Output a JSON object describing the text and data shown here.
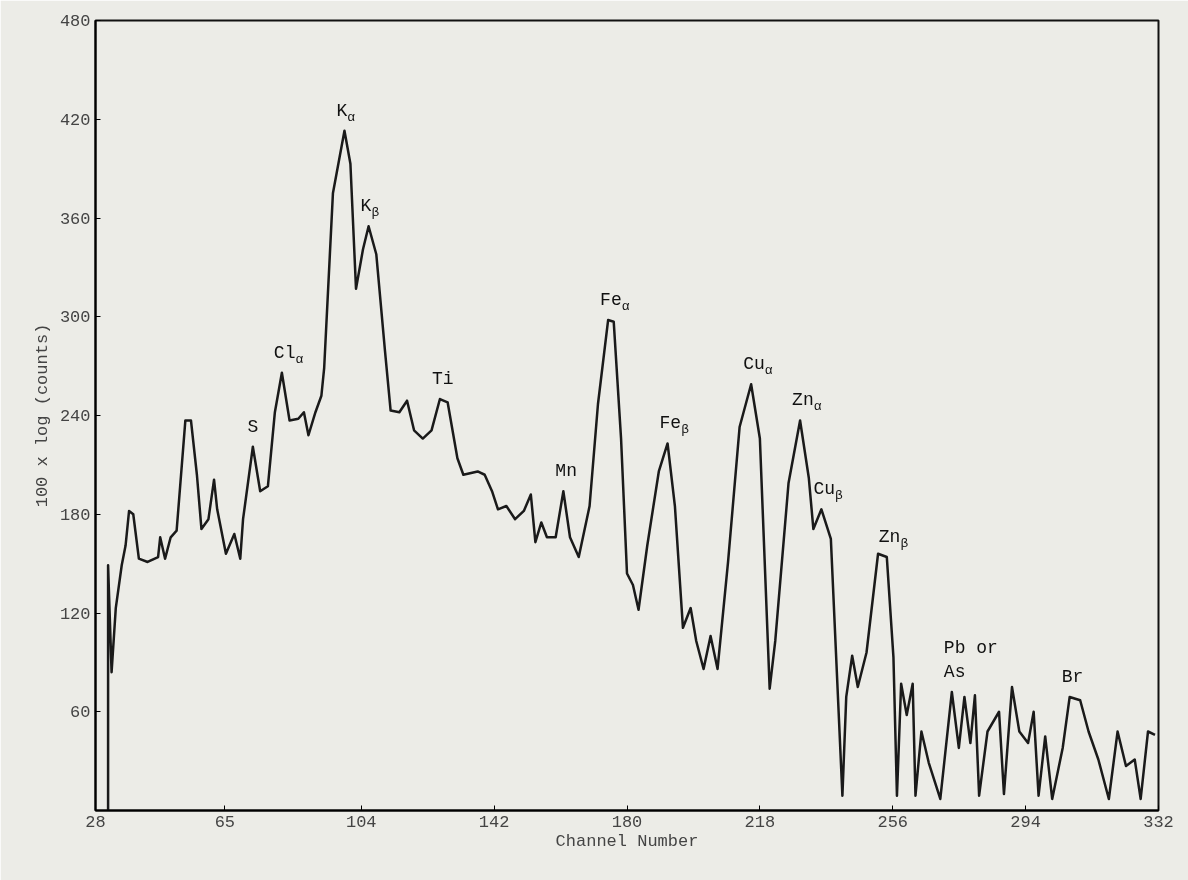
{
  "chart_data": {
    "type": "line",
    "xlabel": "Channel Number",
    "ylabel": "100 x log (counts)",
    "x": [
      31.6,
      31.6,
      32.6,
      33.8,
      35.5,
      36.6,
      37.6,
      38.8,
      40.4,
      42.9,
      45.9,
      46.5,
      47.9,
      49.5,
      51.2,
      53.7,
      55.3,
      57,
      58.3,
      60.3,
      61.9,
      62.8,
      65.3,
      67.7,
      69.4,
      70.2,
      73,
      75.1,
      77.3,
      79.3,
      81.3,
      83.5,
      86,
      87.6,
      88.9,
      90.9,
      92.6,
      93.4,
      95.9,
      99.2,
      100.9,
      102.5,
      104.5,
      106.1,
      108.3,
      110.8,
      112.4,
      114.9,
      117.1,
      119.1,
      121.6,
      124.1,
      126.5,
      128.7,
      131.5,
      133.2,
      137.3,
      139.3,
      141.4,
      143.1,
      145.5,
      148,
      150.5,
      152.5,
      153.8,
      155.5,
      157.1,
      159.6,
      161.8,
      163.7,
      166.2,
      169.3,
      171.7,
      174.6,
      176.2,
      178.3,
      180,
      181.7,
      183.3,
      185.8,
      189.1,
      191.6,
      193.7,
      196,
      198.2,
      199.8,
      201.9,
      203.9,
      205.9,
      208.9,
      212.2,
      215.5,
      218,
      220.8,
      222.4,
      226.2,
      229.5,
      232,
      233.3,
      235.6,
      238.3,
      241.6,
      242.7,
      244.4,
      246,
      248.5,
      251.8,
      254.3,
      256.2,
      257.2,
      258.4,
      260,
      261.7,
      262.5,
      264.2,
      266.3,
      269.6,
      272.9,
      274.9,
      276.5,
      278.2,
      279.5,
      280.7,
      283.1,
      286.4,
      287.8,
      290.1,
      292.2,
      294.7,
      296.3,
      297.7,
      299.6,
      301.6,
      304.6,
      306.6,
      309.6,
      312,
      314.8,
      317.8,
      320.3,
      322.7,
      325.2,
      326.9,
      329,
      331
    ],
    "series": [
      {
        "color": "#1a1a1a",
        "values": [
          0,
          149,
          84,
          123,
          149,
          161,
          182,
          180,
          153,
          151,
          154,
          166,
          153,
          166,
          170,
          237,
          237,
          204,
          171,
          177,
          201,
          183,
          156,
          168,
          153,
          177,
          221,
          194,
          197,
          242,
          266,
          237,
          238,
          242,
          228,
          242,
          252,
          269,
          375,
          413,
          393,
          317,
          341,
          355,
          338,
          279,
          243,
          242,
          249,
          231,
          226,
          231,
          250,
          248,
          214,
          204,
          206,
          204,
          194,
          183,
          185,
          177,
          182,
          192,
          163,
          175,
          166,
          166,
          194,
          166,
          154,
          185,
          247,
          298,
          297,
          226,
          144,
          137,
          122,
          161,
          206,
          223,
          185,
          111,
          123,
          103,
          86,
          106,
          86,
          151,
          233,
          259,
          226,
          74,
          103,
          199,
          237,
          202,
          171,
          183,
          165,
          9,
          69,
          94,
          75,
          96,
          156,
          154,
          93,
          9,
          77,
          58,
          77,
          9,
          48,
          29,
          7,
          72,
          38,
          69,
          41,
          70,
          9,
          48,
          60,
          10,
          75,
          48,
          41,
          60,
          9,
          45,
          7,
          38,
          69,
          67,
          48,
          31,
          7,
          48,
          27,
          31,
          7,
          48,
          46
        ]
      }
    ],
    "xlim": [
      28,
      332
    ],
    "xticks": [
      28,
      65,
      104,
      142,
      180,
      218,
      256,
      294,
      332
    ],
    "ylim": [
      0,
      480
    ],
    "yticks": [
      60,
      120,
      180,
      240,
      300,
      360,
      420,
      480
    ],
    "grid": false,
    "marker": "none",
    "line_style": "solid",
    "annotations": [
      {
        "text": "S",
        "x": 73,
        "y": 221
      },
      {
        "text": "Cl$_{α}$",
        "x": 81.3,
        "y": 266
      },
      {
        "text": "K$_{α}$",
        "x": 99.2,
        "y": 413
      },
      {
        "text": "K$_{β}$",
        "x": 106.1,
        "y": 355
      },
      {
        "text": "Ti",
        "x": 126.5,
        "y": 250
      },
      {
        "text": "Mn",
        "x": 161.8,
        "y": 194
      },
      {
        "text": "Fe$_{α}$",
        "x": 174.6,
        "y": 298
      },
      {
        "text": "Fe$_{β}$",
        "x": 191.6,
        "y": 223
      },
      {
        "text": "Cu$_{α}$",
        "x": 215.5,
        "y": 259
      },
      {
        "text": "Zn$_{α}$",
        "x": 229.5,
        "y": 237
      },
      {
        "text": "Cu$_{β}$",
        "x": 235.6,
        "y": 183
      },
      {
        "text": "Zn$_{β}$",
        "x": 254.3,
        "y": 154
      },
      {
        "text": "Pb or\nAs",
        "x": 272.9,
        "y": 72
      },
      {
        "text": "Br",
        "x": 306.6,
        "y": 69
      }
    ]
  }
}
